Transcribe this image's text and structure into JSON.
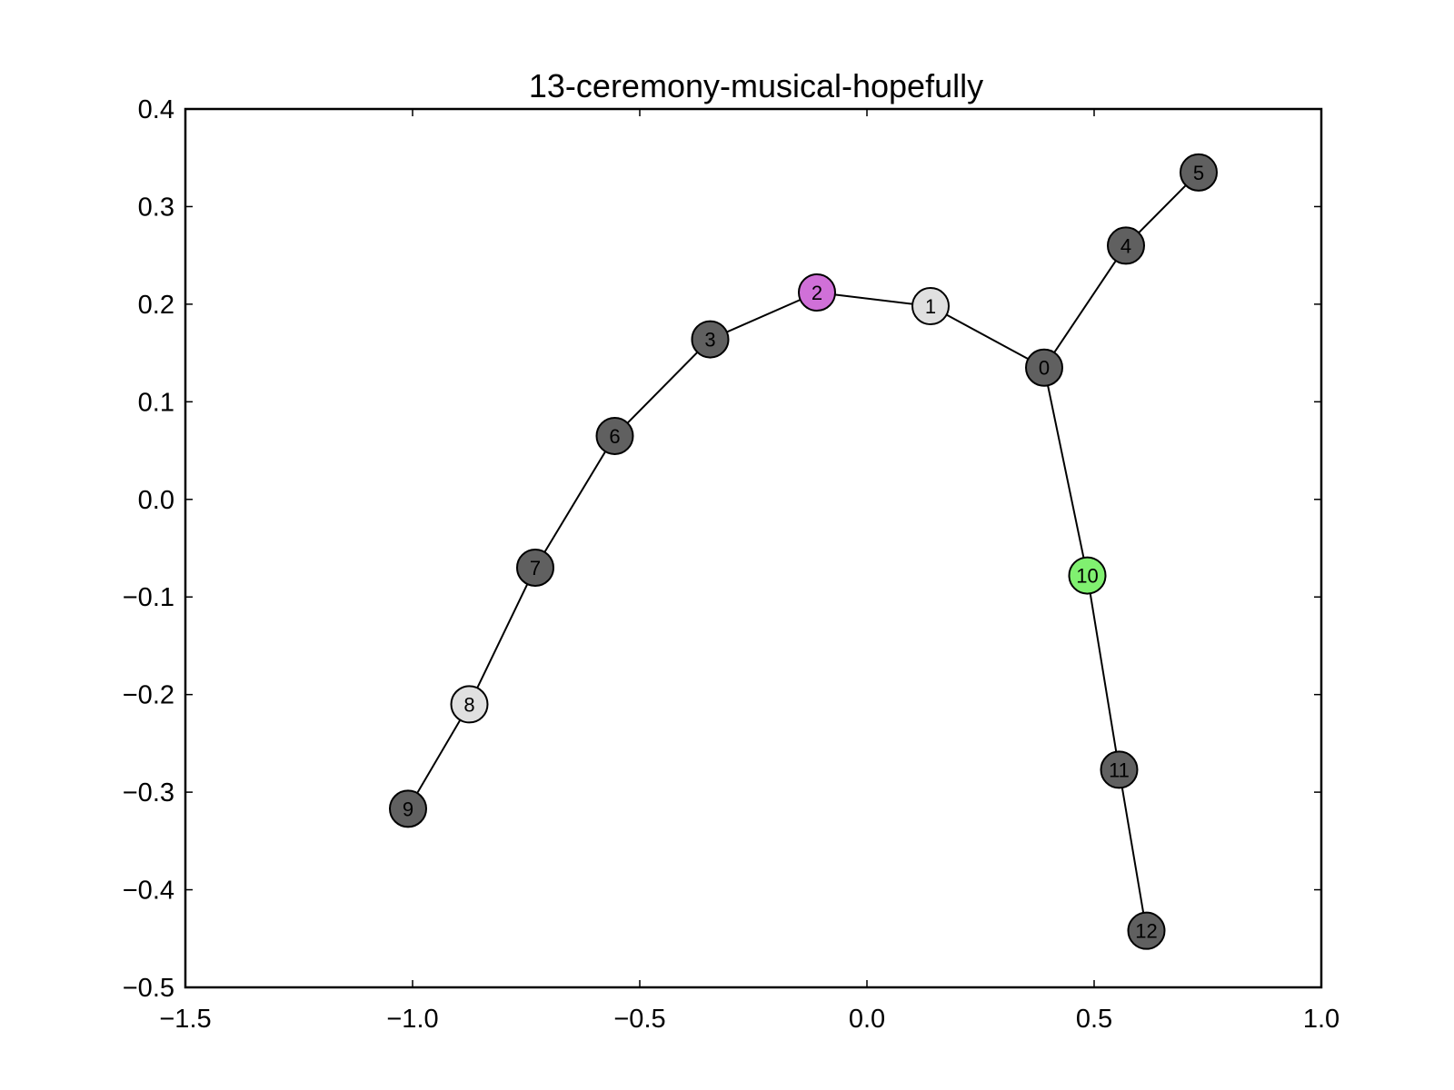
{
  "chart_data": {
    "type": "scatter",
    "title": "13-ceremony-musical-hopefully",
    "xlim": [
      -1.5,
      1.0
    ],
    "ylim": [
      -0.5,
      0.4
    ],
    "x_ticks": [
      -1.5,
      -1.0,
      -0.5,
      0.0,
      0.5,
      1.0
    ],
    "x_tick_labels": [
      "−1.5",
      "−1.0",
      "−0.5",
      "0.0",
      "0.5",
      "1.0"
    ],
    "y_ticks": [
      -0.5,
      -0.4,
      -0.3,
      -0.2,
      -0.1,
      0.0,
      0.1,
      0.2,
      0.3,
      0.4
    ],
    "y_tick_labels": [
      "−0.5",
      "−0.4",
      "−0.3",
      "−0.2",
      "−0.1",
      "0.0",
      "0.1",
      "0.2",
      "0.3",
      "0.4"
    ],
    "grid": false,
    "nodes": [
      {
        "id": "0",
        "x": 0.39,
        "y": 0.135,
        "color": "#606060"
      },
      {
        "id": "1",
        "x": 0.14,
        "y": 0.198,
        "color": "#e0e0e0"
      },
      {
        "id": "2",
        "x": -0.11,
        "y": 0.212,
        "color": "#d070d8"
      },
      {
        "id": "3",
        "x": -0.345,
        "y": 0.164,
        "color": "#606060"
      },
      {
        "id": "4",
        "x": 0.57,
        "y": 0.26,
        "color": "#606060"
      },
      {
        "id": "5",
        "x": 0.73,
        "y": 0.335,
        "color": "#606060"
      },
      {
        "id": "6",
        "x": -0.555,
        "y": 0.065,
        "color": "#606060"
      },
      {
        "id": "7",
        "x": -0.73,
        "y": -0.07,
        "color": "#606060"
      },
      {
        "id": "8",
        "x": -0.875,
        "y": -0.21,
        "color": "#e0e0e0"
      },
      {
        "id": "9",
        "x": -1.01,
        "y": -0.317,
        "color": "#606060"
      },
      {
        "id": "10",
        "x": 0.485,
        "y": -0.078,
        "color": "#80f070"
      },
      {
        "id": "11",
        "x": 0.555,
        "y": -0.277,
        "color": "#606060"
      },
      {
        "id": "12",
        "x": 0.615,
        "y": -0.442,
        "color": "#606060"
      }
    ],
    "edges": [
      [
        "9",
        "8"
      ],
      [
        "8",
        "7"
      ],
      [
        "7",
        "6"
      ],
      [
        "6",
        "3"
      ],
      [
        "3",
        "2"
      ],
      [
        "2",
        "1"
      ],
      [
        "1",
        "0"
      ],
      [
        "0",
        "4"
      ],
      [
        "4",
        "5"
      ],
      [
        "0",
        "10"
      ],
      [
        "10",
        "11"
      ],
      [
        "11",
        "12"
      ]
    ]
  }
}
